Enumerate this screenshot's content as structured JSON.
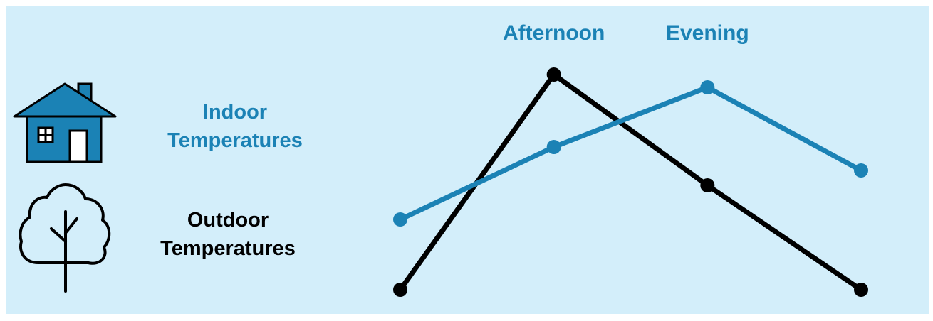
{
  "legend": {
    "indoor_line1": "Indoor",
    "indoor_line2": "Temperatures",
    "outdoor_line1": "Outdoor",
    "outdoor_line2": "Temperatures",
    "indoor_icon": "house-icon",
    "outdoor_icon": "tree-icon"
  },
  "colors": {
    "background": "#d3eefa",
    "indoor": "#1b82b5",
    "outdoor": "#000000"
  },
  "chart_data": {
    "type": "line",
    "title": "",
    "xlabel": "",
    "ylabel": "",
    "x": [
      1,
      2,
      3,
      4
    ],
    "category_labels": [
      {
        "x": 2,
        "label": "Afternoon"
      },
      {
        "x": 3,
        "label": "Evening"
      }
    ],
    "ylim": [
      0,
      100
    ],
    "grid": false,
    "axes_visible": false,
    "series": [
      {
        "name": "Indoor Temperatures",
        "color": "#1b82b5",
        "values": [
          33,
          67,
          95,
          56
        ]
      },
      {
        "name": "Outdoor Temperatures",
        "color": "#000000",
        "values": [
          0,
          101,
          49,
          0
        ]
      }
    ]
  }
}
